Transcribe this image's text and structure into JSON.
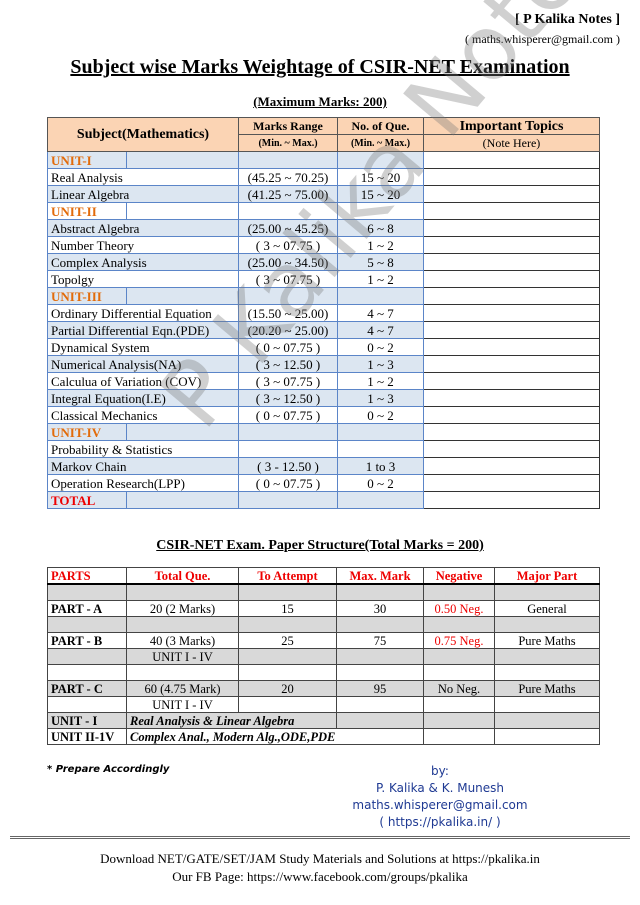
{
  "header": {
    "brand": "[ P Kalika Notes ]",
    "email": "( maths.whisperer@gmail.com )"
  },
  "title": "Subject wise Marks Weightage of  CSIR-NET Examination",
  "subtitle": "(Maximum Marks: 200)",
  "table1": {
    "headers": {
      "subject": "Subject(Mathematics)",
      "range": "Marks Range",
      "range_sub": "(Min. ~ Max.)",
      "que": "No. of Que.",
      "que_sub": "(Min. ~ Max.)",
      "topics": "Important Topics",
      "topics_sub": "(Note Here)"
    },
    "rows": [
      {
        "type": "unit",
        "subject": "UNIT-I"
      },
      {
        "subject": "Real Analysis",
        "range": "(45.25 ~ 70.25)",
        "que": "15 ~ 20"
      },
      {
        "subject": "Linear Algebra",
        "range": "(41.25 ~ 75.00)",
        "que": "15 ~ 20"
      },
      {
        "type": "unit",
        "subject": "UNIT-II"
      },
      {
        "subject": "Abstract Algebra",
        "range": "(25.00 ~ 45.25)",
        "que": "6 ~ 8"
      },
      {
        "subject": "Number Theory",
        "range": "( 3 ~ 07.75 )",
        "que": "1 ~ 2"
      },
      {
        "subject": "Complex Analysis",
        "range": "(25.00 ~ 34.50)",
        "que": "5 ~ 8"
      },
      {
        "subject": "Topolgy",
        "range": "( 3 ~ 07.75 )",
        "que": "1 ~ 2"
      },
      {
        "type": "unit",
        "subject": "UNIT-III"
      },
      {
        "subject": "Ordinary Differential Equation",
        "range": "(15.50 ~ 25.00)",
        "que": "4 ~ 7"
      },
      {
        "subject": "Partial Differential Eqn.(PDE)",
        "range": "(20.20 ~ 25.00)",
        "que": "4 ~ 7"
      },
      {
        "subject": "Dynamical System",
        "range": "( 0 ~ 07.75 )",
        "que": "0 ~ 2"
      },
      {
        "subject": "Numerical Analysis(NA)",
        "range": "( 3 ~ 12.50 )",
        "que": "1 ~ 3"
      },
      {
        "subject": "Calculua of Variation (COV)",
        "range": "( 3 ~ 07.75 )",
        "que": "1 ~ 2"
      },
      {
        "subject": "Integral Equation(I.E)",
        "range": "( 3 ~ 12.50 )",
        "que": "1 ~ 3"
      },
      {
        "subject": "Classical Mechanics",
        "range": "( 0 ~ 07.75 )",
        "que": "0 ~ 2"
      },
      {
        "type": "unit",
        "subject": "UNIT-IV"
      },
      {
        "subject": "Probability & Statistics",
        "range": "",
        "que": ""
      },
      {
        "subject": "Markov Chain",
        "range": "( 3 - 12.50 )",
        "que": "1 to 3"
      },
      {
        "subject": "Operation Research(LPP)",
        "range": "( 0 ~ 07.75 )",
        "que": "0 ~ 2"
      },
      {
        "type": "total",
        "subject": "TOTAL"
      }
    ]
  },
  "structure_title": "CSIR-NET Exam. Paper Structure(Total Marks = 200)",
  "table2": {
    "headers": [
      "PARTS",
      "Total Que.",
      "To Attempt",
      "Max. Mark",
      "Negative",
      "Major Part"
    ],
    "rows": [
      {
        "cells": [
          "",
          "",
          "",
          "",
          "",
          ""
        ],
        "gray": true
      },
      {
        "cells": [
          "PART - A",
          "20 (2 Marks)",
          "15",
          "30",
          "0.50 Neg.",
          "General"
        ],
        "neg_red": true
      },
      {
        "cells": [
          "",
          "",
          "",
          "",
          "",
          ""
        ],
        "gray": true
      },
      {
        "cells": [
          "PART - B",
          "40 (3 Marks)",
          "25",
          "75",
          "0.75 Neg.",
          "Pure Maths"
        ],
        "neg_red": true
      },
      {
        "cells": [
          "",
          "UNIT I - IV",
          "",
          "",
          "",
          ""
        ],
        "gray": true
      },
      {
        "cells": [
          "",
          "",
          "",
          "",
          "",
          ""
        ]
      },
      {
        "cells": [
          "PART - C",
          "60 (4.75 Mark)",
          "20",
          "95",
          "No Neg.",
          "Pure Maths"
        ],
        "gray": true
      },
      {
        "cells": [
          "",
          "UNIT I - IV",
          "",
          "",
          "",
          ""
        ]
      },
      {
        "span": 2,
        "cells": [
          "UNIT - I",
          "Real Analysis & Linear Algebra",
          "",
          "",
          ""
        ],
        "gray": true
      },
      {
        "span": 3,
        "cells": [
          "UNIT II-1V",
          "Complex Anal., Modern Alg.,ODE,PDE",
          "",
          ""
        ]
      }
    ]
  },
  "note": "* Prepare Accordingly",
  "credits": {
    "by": "by:",
    "authors": "P. Kalika & K. Munesh",
    "email": "maths.whisperer@gmail.com",
    "site": "( https://pkalika.in/ )"
  },
  "footer": {
    "line1": "Download NET/GATE/SET/JAM Study Materials and Solutions at https://pkalika.in",
    "line2": "Our FB Page: https://www.facebook.com/groups/pkalika"
  },
  "watermark": "P Kalika Notes",
  "colors": {
    "header_fill": "#fbd4b4",
    "unit": "#e26b0a",
    "red": "#e00000",
    "row_blue": "#dce6f1",
    "row_gray": "#d9d9d9"
  }
}
